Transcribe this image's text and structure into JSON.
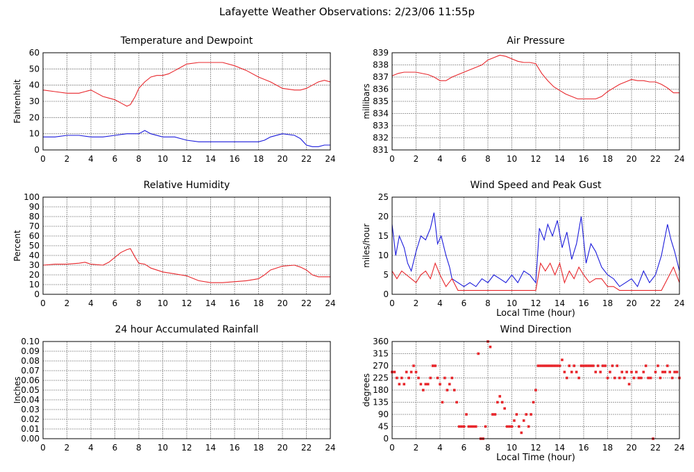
{
  "page_title": "Lafayette Weather Observations: 2/23/06 11:55p",
  "colors": {
    "red": "#e8262b",
    "blue": "#1a1adb",
    "grid": "#808080",
    "frame": "#000000"
  },
  "chart_data": [
    {
      "id": "temperature",
      "type": "line",
      "title": "Temperature and Dewpoint",
      "xlabel": "",
      "ylabel": "Fahrenheit",
      "xlim": [
        0,
        24
      ],
      "ylim": [
        0,
        60
      ],
      "xticks": [
        0,
        2,
        4,
        6,
        8,
        10,
        12,
        14,
        16,
        18,
        20,
        22,
        24
      ],
      "yticks": [
        0,
        10,
        20,
        30,
        40,
        50,
        60
      ],
      "grid": true,
      "series": [
        {
          "color": "#e8262b",
          "x": [
            0,
            1,
            2,
            3,
            3.5,
            4,
            4.5,
            5,
            5.5,
            6,
            6.5,
            7,
            7.3,
            7.7,
            8,
            8.5,
            9,
            9.5,
            10,
            10.5,
            11,
            11.5,
            12,
            13,
            14,
            15,
            16,
            17,
            18,
            19,
            20,
            21,
            21.5,
            22,
            22.5,
            23,
            23.5,
            24
          ],
          "y": [
            37,
            36,
            35,
            35,
            36,
            37,
            35,
            33,
            32,
            31,
            29,
            27,
            28,
            33,
            38,
            42,
            45,
            46,
            46,
            47,
            49,
            51,
            53,
            54,
            54,
            54,
            52,
            49,
            45,
            42,
            38,
            37,
            37,
            38,
            40,
            42,
            43,
            42
          ]
        },
        {
          "color": "#1a1adb",
          "x": [
            0,
            1,
            2,
            3,
            4,
            5,
            6,
            7,
            8,
            8.5,
            9,
            10,
            11,
            12,
            13,
            14,
            15,
            16,
            17,
            18,
            18.5,
            19,
            20,
            21,
            21.5,
            22,
            22.5,
            23,
            23.5,
            24
          ],
          "y": [
            8,
            8,
            9,
            9,
            8,
            8,
            9,
            10,
            10,
            12,
            10,
            8,
            8,
            6,
            5,
            5,
            5,
            5,
            5,
            5,
            6,
            8,
            10,
            9,
            7,
            3,
            2,
            2,
            3,
            3
          ]
        }
      ]
    },
    {
      "id": "pressure",
      "type": "line",
      "title": "Air Pressure",
      "xlabel": "",
      "ylabel": "millibars",
      "xlim": [
        0,
        24
      ],
      "ylim": [
        831,
        839
      ],
      "xticks": [
        0,
        2,
        4,
        6,
        8,
        10,
        12,
        14,
        16,
        18,
        20,
        22,
        24
      ],
      "yticks": [
        831,
        832,
        833,
        834,
        835,
        836,
        837,
        838,
        839
      ],
      "grid": true,
      "series": [
        {
          "color": "#e8262b",
          "x": [
            0,
            0.5,
            1,
            2,
            3,
            3.5,
            4,
            4.5,
            5,
            5.5,
            6,
            6.5,
            7,
            7.5,
            8,
            8.5,
            9,
            9.5,
            10,
            10.5,
            11,
            11.5,
            12,
            12.5,
            13,
            13.5,
            14,
            14.5,
            15,
            15.5,
            16,
            16.5,
            17,
            17.5,
            18,
            18.5,
            19,
            19.5,
            20,
            20.5,
            21,
            21.5,
            22,
            22.5,
            23,
            23.5,
            24
          ],
          "y": [
            837.1,
            837.3,
            837.4,
            837.4,
            837.2,
            837.0,
            836.7,
            836.7,
            837.0,
            837.2,
            837.4,
            837.6,
            837.8,
            838.0,
            838.4,
            838.6,
            838.8,
            838.7,
            838.5,
            838.3,
            838.2,
            838.2,
            838.1,
            837.3,
            836.7,
            836.2,
            835.9,
            835.6,
            835.4,
            835.2,
            835.2,
            835.2,
            835.2,
            835.4,
            835.8,
            836.1,
            836.4,
            836.6,
            836.8,
            836.7,
            836.7,
            836.6,
            836.6,
            836.4,
            836.1,
            835.7,
            835.7
          ]
        }
      ]
    },
    {
      "id": "humidity",
      "type": "line",
      "title": "Relative Humidity",
      "xlabel": "",
      "ylabel": "Percent",
      "xlim": [
        0,
        24
      ],
      "ylim": [
        0,
        100
      ],
      "xticks": [
        0,
        2,
        4,
        6,
        8,
        10,
        12,
        14,
        16,
        18,
        20,
        22,
        24
      ],
      "yticks": [
        0,
        10,
        20,
        30,
        40,
        50,
        60,
        70,
        80,
        90,
        100
      ],
      "grid": true,
      "series": [
        {
          "color": "#e8262b",
          "x": [
            0,
            1,
            2,
            3,
            3.5,
            4,
            5,
            5.5,
            6,
            6.5,
            7,
            7.3,
            7.7,
            8,
            8.5,
            9,
            10,
            11,
            12,
            13,
            14,
            15,
            16,
            17,
            18,
            18.5,
            19,
            20,
            21,
            21.5,
            22,
            22.5,
            23,
            24
          ],
          "y": [
            30,
            31,
            31,
            32,
            33,
            31,
            30,
            33,
            38,
            43,
            46,
            47,
            38,
            32,
            31,
            27,
            23,
            21,
            19,
            14,
            12,
            12,
            13,
            14,
            16,
            20,
            25,
            29,
            30,
            28,
            25,
            20,
            18,
            18
          ]
        }
      ]
    },
    {
      "id": "wind-speed",
      "type": "line",
      "title": "Wind Speed and Peak Gust",
      "xlabel": "Local Time (hour)",
      "ylabel": "miles/hour",
      "xlim": [
        0,
        24
      ],
      "ylim": [
        0,
        25
      ],
      "xticks": [
        0,
        2,
        4,
        6,
        8,
        10,
        12,
        14,
        16,
        18,
        20,
        22,
        24
      ],
      "yticks": [
        0,
        5,
        10,
        15,
        20,
        25
      ],
      "grid": true,
      "series": [
        {
          "color": "#1a1adb",
          "x": [
            0,
            0.3,
            0.6,
            1,
            1.3,
            1.6,
            2,
            2.4,
            2.8,
            3.2,
            3.5,
            3.8,
            4.1,
            4.5,
            4.8,
            5,
            5.5,
            6,
            6.5,
            7,
            7.5,
            8,
            8.5,
            9,
            9.5,
            10,
            10.5,
            11,
            11.5,
            12,
            12.3,
            12.7,
            13,
            13.4,
            13.8,
            14.2,
            14.6,
            15,
            15.4,
            15.8,
            16.2,
            16.6,
            17,
            17.5,
            18,
            18.5,
            19,
            19.5,
            20,
            20.5,
            21,
            21.5,
            22,
            22.5,
            23,
            23.3,
            23.6,
            24
          ],
          "y": [
            18,
            10,
            15,
            12,
            8,
            6,
            11,
            15,
            14,
            17,
            21,
            13,
            15,
            10,
            7,
            4,
            3,
            2,
            3,
            2,
            4,
            3,
            5,
            4,
            3,
            5,
            3,
            6,
            5,
            3,
            17,
            14,
            18,
            15,
            19,
            12,
            16,
            9,
            13,
            20,
            8,
            13,
            11,
            7,
            5,
            4,
            2,
            3,
            4,
            2,
            6,
            3,
            5,
            10,
            18,
            14,
            11,
            6
          ]
        },
        {
          "color": "#e8262b",
          "x": [
            0,
            0.4,
            0.8,
            1.2,
            1.6,
            2,
            2.4,
            2.8,
            3.2,
            3.6,
            4,
            4.5,
            5,
            5.5,
            6,
            6.5,
            7,
            7.5,
            8,
            8.5,
            9,
            9.5,
            10,
            10.5,
            11,
            11.5,
            12,
            12.4,
            12.8,
            13.2,
            13.6,
            14,
            14.4,
            14.8,
            15.2,
            15.6,
            16,
            16.5,
            17,
            17.5,
            18,
            18.5,
            19,
            19.5,
            20,
            20.5,
            21,
            21.5,
            22,
            22.5,
            23,
            23.5,
            24
          ],
          "y": [
            6,
            4,
            6,
            5,
            4,
            3,
            5,
            6,
            4,
            8,
            5,
            2,
            4,
            1,
            1,
            1,
            1,
            1,
            1,
            1,
            1,
            1,
            1,
            1,
            1,
            1,
            1,
            8,
            6,
            8,
            5,
            8,
            3,
            6,
            4,
            7,
            5,
            3,
            4,
            4,
            2,
            2,
            1,
            1,
            1,
            1,
            1,
            1,
            1,
            1,
            4,
            7,
            3
          ]
        }
      ]
    },
    {
      "id": "rainfall",
      "type": "line",
      "title": "24 hour Accumulated Rainfall",
      "xlabel": "",
      "ylabel": "Inches",
      "xlim": [
        0,
        24
      ],
      "ylim": [
        0,
        0.1
      ],
      "xticks": [
        0,
        2,
        4,
        6,
        8,
        10,
        12,
        14,
        16,
        18,
        20,
        22,
        24
      ],
      "yticks": [
        "0.00",
        "0.01",
        "0.02",
        "0.03",
        "0.04",
        "0.05",
        "0.06",
        "0.07",
        "0.08",
        "0.09",
        "0.10"
      ],
      "grid": true,
      "series": [
        {
          "color": "#e8262b",
          "x": [
            0,
            24
          ],
          "y": [
            0,
            0
          ]
        }
      ]
    },
    {
      "id": "wind-direction",
      "type": "scatter",
      "title": "Wind Direction",
      "xlabel": "Local Time (hour)",
      "ylabel": "degrees",
      "xlim": [
        0,
        24
      ],
      "ylim": [
        0,
        360
      ],
      "xticks": [
        0,
        2,
        4,
        6,
        8,
        10,
        12,
        14,
        16,
        18,
        20,
        22,
        24
      ],
      "yticks": [
        0,
        45,
        90,
        135,
        180,
        225,
        270,
        315,
        360
      ],
      "grid": true,
      "series": [
        {
          "color": "#e8262b",
          "x": [
            0,
            0.2,
            0.4,
            0.6,
            0.8,
            1,
            1.2,
            1.4,
            1.6,
            1.8,
            2,
            2.2,
            2.4,
            2.6,
            2.8,
            3,
            3.2,
            3.4,
            3.6,
            3.8,
            4,
            4.2,
            4.4,
            4.6,
            4.8,
            5,
            5.2,
            5.4,
            5.6,
            5.8,
            6,
            6.2,
            6.4,
            6.6,
            6.8,
            7,
            7.2,
            7.4,
            7.6,
            7.8,
            8,
            8.2,
            8.4,
            8.6,
            8.8,
            9,
            9.2,
            9.4,
            9.6,
            9.8,
            10,
            10.2,
            10.4,
            10.6,
            10.8,
            11,
            11.2,
            11.4,
            11.6,
            11.8,
            12,
            12.2,
            12.4,
            12.6,
            12.8,
            13,
            13.2,
            13.4,
            13.6,
            13.8,
            14,
            14.2,
            14.4,
            14.6,
            14.8,
            15,
            15.2,
            15.4,
            15.6,
            15.8,
            16,
            16.2,
            16.4,
            16.6,
            16.8,
            17,
            17.2,
            17.4,
            17.6,
            17.8,
            18,
            18.2,
            18.4,
            18.6,
            18.8,
            19,
            19.2,
            19.4,
            19.6,
            19.8,
            20,
            20.2,
            20.4,
            20.6,
            20.8,
            21,
            21.2,
            21.4,
            21.6,
            21.8,
            22,
            22.2,
            22.4,
            22.6,
            22.8,
            23,
            23.2,
            23.4,
            23.6,
            23.8,
            24
          ],
          "y": [
            247,
            247,
            225,
            202,
            225,
            202,
            247,
            225,
            247,
            270,
            247,
            225,
            202,
            180,
            202,
            202,
            225,
            270,
            270,
            225,
            202,
            135,
            225,
            180,
            202,
            225,
            180,
            135,
            45,
            45,
            45,
            90,
            45,
            45,
            45,
            45,
            315,
            0,
            0,
            45,
            360,
            340,
            90,
            90,
            135,
            157,
            135,
            112,
            45,
            45,
            45,
            67,
            90,
            45,
            22,
            67,
            90,
            45,
            90,
            135,
            180,
            270,
            270,
            270,
            270,
            270,
            270,
            270,
            270,
            270,
            270,
            292,
            247,
            225,
            270,
            247,
            270,
            247,
            225,
            270,
            270,
            270,
            270,
            270,
            270,
            247,
            270,
            247,
            270,
            270,
            225,
            247,
            270,
            225,
            270,
            225,
            247,
            225,
            247,
            202,
            247,
            225,
            247,
            225,
            225,
            247,
            270,
            225,
            225,
            0,
            247,
            270,
            225,
            247,
            247,
            270,
            247,
            225,
            247,
            247,
            225
          ]
        }
      ]
    }
  ]
}
